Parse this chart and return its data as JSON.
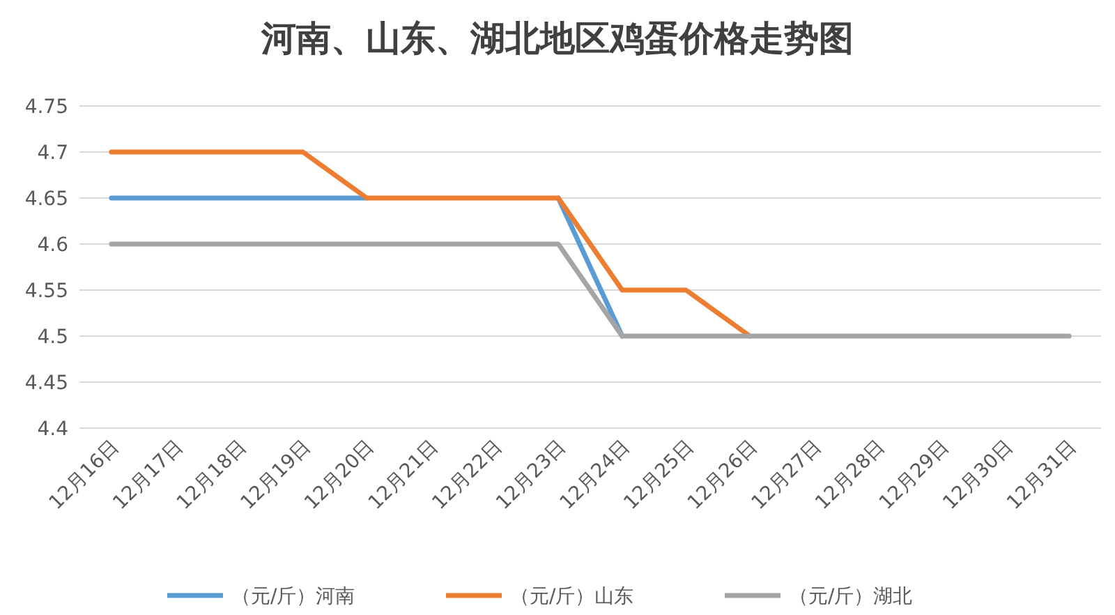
{
  "chart_data": {
    "type": "line",
    "title": "河南、山东、湖北地区鸡蛋价格走势图",
    "categories": [
      "12月16日",
      "12月17日",
      "12月18日",
      "12月19日",
      "12月20日",
      "12月21日",
      "12月22日",
      "12月23日",
      "12月24日",
      "12月25日",
      "12月26日",
      "12月27日",
      "12月28日",
      "12月29日",
      "12月30日",
      "12月31日"
    ],
    "series": [
      {
        "name": "（元/斤）河南",
        "color": "#5b9bd5",
        "values": [
          4.65,
          4.65,
          4.65,
          4.65,
          4.65,
          null,
          null,
          4.65,
          4.5,
          null,
          null,
          null,
          null,
          null,
          null,
          null
        ]
      },
      {
        "name": "（元/斤）山东",
        "color": "#ed7d31",
        "values": [
          4.7,
          4.7,
          4.7,
          4.7,
          4.65,
          4.65,
          4.65,
          4.65,
          4.55,
          4.55,
          4.5,
          null,
          null,
          null,
          null,
          null
        ]
      },
      {
        "name": "（元/斤）湖北",
        "color": "#a5a5a5",
        "values": [
          4.6,
          4.6,
          4.6,
          4.6,
          4.6,
          4.6,
          4.6,
          4.6,
          4.5,
          4.5,
          4.5,
          4.5,
          4.5,
          4.5,
          4.5,
          4.5
        ]
      }
    ],
    "ylim": [
      4.4,
      4.75
    ],
    "yticks": [
      4.4,
      4.45,
      4.5,
      4.55,
      4.6,
      4.65,
      4.7,
      4.75
    ],
    "grid": "y",
    "legend": "bottom",
    "marker": "none",
    "line_style": "solid"
  }
}
